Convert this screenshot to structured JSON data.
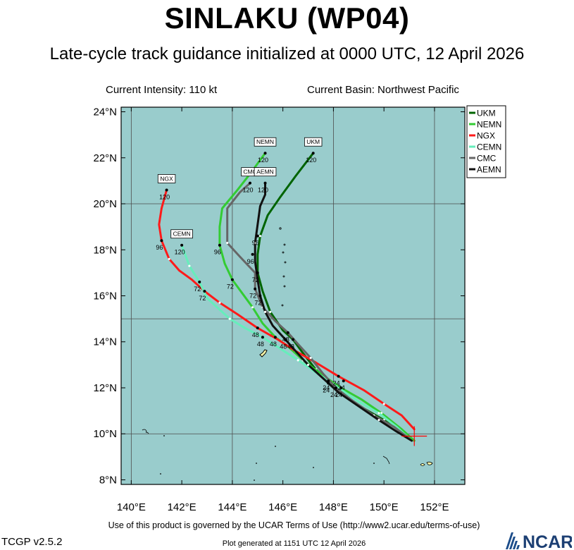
{
  "header": {
    "title": "SINLAKU (WP04)",
    "subtitle": "Late-cycle track guidance initialized at 0000 UTC, 12 April 2026",
    "intensity": "Current Intensity: 110 kt",
    "basin": "Current Basin: Northwest Pacific"
  },
  "footer": {
    "terms": "Use of this product is governed by the UCAR Terms of Use (http://www2.ucar.edu/terms-of-use)",
    "version": "TCGP v2.5.2",
    "generated": "Plot generated at 1151 UTC   12 April 2026",
    "logo_text": "NCAR"
  },
  "colors": {
    "ocean": "#99cccc",
    "land": "#ffffaa",
    "grid": "#4d4d4d",
    "init_marker": "#ff0000"
  },
  "chart_data": {
    "type": "line",
    "xlim": [
      139.6,
      153.2
    ],
    "ylim": [
      7.8,
      24.2
    ],
    "x_ticks": [
      140,
      142,
      144,
      146,
      148,
      150,
      152
    ],
    "x_tick_labels": [
      "140°E",
      "142°E",
      "144°E",
      "146°E",
      "148°E",
      "150°E",
      "152°E"
    ],
    "y_ticks": [
      8,
      10,
      12,
      14,
      16,
      18,
      20,
      22,
      24
    ],
    "y_tick_labels": [
      "8°N",
      "10°N",
      "12°N",
      "14°N",
      "16°N",
      "18°N",
      "20°N",
      "22°N",
      "24°N"
    ],
    "grid_x": [
      140,
      144,
      148,
      152
    ],
    "grid_y": [
      10,
      15,
      20
    ],
    "initial_position": [
      151.2,
      9.9
    ],
    "legend_position": "top-right",
    "series": [
      {
        "name": "UKM",
        "color": "#006400",
        "points": [
          [
            151.2,
            9.7
          ],
          [
            150.8,
            10.0
          ],
          [
            150.0,
            10.6
          ],
          [
            149.2,
            11.1
          ],
          [
            148.4,
            11.7
          ],
          [
            147.8,
            12.3
          ],
          [
            147.3,
            12.8
          ],
          [
            146.8,
            13.5
          ],
          [
            146.4,
            14.1
          ],
          [
            146.0,
            14.5
          ],
          [
            145.5,
            15.3
          ],
          [
            145.2,
            16.2
          ],
          [
            145.0,
            17.0
          ],
          [
            145.0,
            17.8
          ],
          [
            145.1,
            18.6
          ],
          [
            145.4,
            19.5
          ],
          [
            145.9,
            20.3
          ],
          [
            146.5,
            21.2
          ],
          [
            147.2,
            22.2
          ]
        ],
        "labels": [
          {
            "lon": 147.8,
            "lat": 12.3,
            "text": "24"
          },
          {
            "lon": 146.4,
            "lat": 14.1,
            "text": "48"
          },
          {
            "lon": 145.0,
            "lat": 17.0,
            "text": "72"
          },
          {
            "lon": 145.0,
            "lat": 18.6,
            "text": "96"
          },
          {
            "lon": 147.2,
            "lat": 22.2,
            "text": "120"
          }
        ],
        "end_label": "UKM"
      },
      {
        "name": "NEMN",
        "color": "#33cc33",
        "points": [
          [
            151.2,
            9.7
          ],
          [
            150.7,
            10.2
          ],
          [
            149.9,
            10.9
          ],
          [
            149.1,
            11.5
          ],
          [
            148.3,
            12.0
          ],
          [
            147.5,
            12.6
          ],
          [
            146.8,
            13.2
          ],
          [
            146.2,
            13.8
          ],
          [
            145.7,
            14.2
          ],
          [
            145.2,
            14.8
          ],
          [
            144.8,
            15.5
          ],
          [
            144.4,
            16.1
          ],
          [
            144.0,
            16.7
          ],
          [
            143.7,
            17.4
          ],
          [
            143.5,
            18.2
          ],
          [
            143.5,
            19.0
          ],
          [
            143.6,
            19.8
          ],
          [
            144.2,
            20.6
          ],
          [
            144.7,
            21.3
          ],
          [
            145.3,
            22.2
          ]
        ],
        "labels": [
          {
            "lon": 148.3,
            "lat": 12.0,
            "text": "24"
          },
          {
            "lon": 145.7,
            "lat": 14.2,
            "text": "48"
          },
          {
            "lon": 144.0,
            "lat": 16.7,
            "text": "72"
          },
          {
            "lon": 143.5,
            "lat": 18.2,
            "text": "96"
          },
          {
            "lon": 145.3,
            "lat": 22.2,
            "text": "120"
          }
        ],
        "end_label": "NEMN"
      },
      {
        "name": "NGX",
        "color": "#ff1a1a",
        "points": [
          [
            151.2,
            10.2
          ],
          [
            150.7,
            10.8
          ],
          [
            150.0,
            11.3
          ],
          [
            149.2,
            11.9
          ],
          [
            148.2,
            12.5
          ],
          [
            147.3,
            13.1
          ],
          [
            146.5,
            13.6
          ],
          [
            145.8,
            14.1
          ],
          [
            145.0,
            14.6
          ],
          [
            144.2,
            15.2
          ],
          [
            143.5,
            15.7
          ],
          [
            142.9,
            16.2
          ],
          [
            142.4,
            16.7
          ],
          [
            141.9,
            17.1
          ],
          [
            141.5,
            17.6
          ],
          [
            141.2,
            18.4
          ],
          [
            141.1,
            19.1
          ],
          [
            141.2,
            19.8
          ],
          [
            141.4,
            20.6
          ]
        ],
        "labels": [
          {
            "lon": 148.2,
            "lat": 12.5,
            "text": "24"
          },
          {
            "lon": 145.0,
            "lat": 14.6,
            "text": "48"
          },
          {
            "lon": 142.9,
            "lat": 16.2,
            "text": "72"
          },
          {
            "lon": 141.2,
            "lat": 18.4,
            "text": "96"
          },
          {
            "lon": 141.4,
            "lat": 20.6,
            "text": "120"
          }
        ],
        "end_label": "NGX"
      },
      {
        "name": "CEMN",
        "color": "#66eebb",
        "points": [
          [
            151.0,
            9.8
          ],
          [
            150.5,
            10.3
          ],
          [
            149.8,
            10.9
          ],
          [
            149.0,
            11.4
          ],
          [
            148.2,
            12.0
          ],
          [
            147.4,
            12.6
          ],
          [
            146.6,
            13.2
          ],
          [
            145.9,
            13.7
          ],
          [
            145.2,
            14.2
          ],
          [
            144.5,
            14.6
          ],
          [
            143.9,
            15.0
          ],
          [
            143.5,
            15.4
          ],
          [
            143.0,
            15.9
          ],
          [
            142.7,
            16.6
          ],
          [
            142.3,
            17.3
          ],
          [
            142.1,
            17.9
          ],
          [
            142.0,
            18.2
          ]
        ],
        "labels": [
          {
            "lon": 148.4,
            "lat": 12.3,
            "text": "24"
          },
          {
            "lon": 145.2,
            "lat": 14.2,
            "text": "48"
          },
          {
            "lon": 142.7,
            "lat": 16.6,
            "text": "72"
          },
          {
            "lon": 142.0,
            "lat": 18.2,
            "text": "120"
          }
        ],
        "end_label": "CEMN"
      },
      {
        "name": "CMC",
        "color": "#666666",
        "points": [
          [
            151.0,
            9.8
          ],
          [
            150.4,
            10.3
          ],
          [
            149.6,
            10.8
          ],
          [
            148.8,
            11.4
          ],
          [
            148.1,
            12.0
          ],
          [
            147.6,
            12.6
          ],
          [
            147.1,
            13.3
          ],
          [
            146.6,
            13.9
          ],
          [
            146.2,
            14.4
          ],
          [
            145.7,
            14.9
          ],
          [
            145.2,
            15.5
          ],
          [
            144.9,
            16.3
          ],
          [
            144.9,
            17.0
          ],
          [
            144.3,
            17.7
          ],
          [
            143.8,
            18.3
          ],
          [
            143.8,
            19.0
          ],
          [
            143.8,
            19.8
          ],
          [
            144.3,
            20.5
          ],
          [
            144.7,
            20.9
          ]
        ],
        "labels": [
          {
            "lon": 148.1,
            "lat": 12.0,
            "text": "24"
          },
          {
            "lon": 146.2,
            "lat": 14.4,
            "text": "48"
          },
          {
            "lon": 144.9,
            "lat": 16.3,
            "text": "72"
          },
          {
            "lon": 144.7,
            "lat": 20.9,
            "text": "120"
          }
        ],
        "end_label": "CMC"
      },
      {
        "name": "AEMN",
        "color": "#111111",
        "points": [
          [
            151.1,
            9.7
          ],
          [
            150.5,
            10.1
          ],
          [
            149.8,
            10.6
          ],
          [
            149.0,
            11.2
          ],
          [
            148.2,
            11.8
          ],
          [
            147.6,
            12.4
          ],
          [
            147.0,
            13.0
          ],
          [
            146.5,
            13.6
          ],
          [
            146.1,
            14.1
          ],
          [
            145.6,
            14.7
          ],
          [
            145.3,
            15.3
          ],
          [
            145.1,
            16.0
          ],
          [
            145.0,
            16.7
          ],
          [
            144.9,
            17.5
          ],
          [
            144.9,
            18.3
          ],
          [
            145.0,
            19.1
          ],
          [
            145.1,
            19.9
          ],
          [
            145.3,
            20.4
          ],
          [
            145.3,
            20.9
          ]
        ],
        "labels": [
          {
            "lon": 147.8,
            "lat": 12.2,
            "text": "24"
          },
          {
            "lon": 146.1,
            "lat": 14.1,
            "text": "48"
          },
          {
            "lon": 145.1,
            "lat": 16.0,
            "text": "72"
          },
          {
            "lon": 144.8,
            "lat": 17.8,
            "text": "96"
          },
          {
            "lon": 145.3,
            "lat": 20.9,
            "text": "120"
          }
        ],
        "end_label": "AEMN"
      }
    ]
  }
}
